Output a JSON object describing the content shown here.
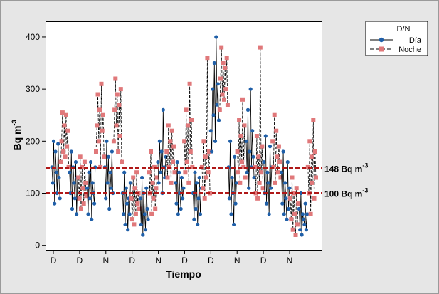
{
  "chart_data": {
    "type": "line",
    "xlabel": "Tiempo",
    "ylabel": "Bq m",
    "ylabel_exp": "-3",
    "ylim": [
      -10,
      430
    ],
    "yticks": [
      0,
      100,
      200,
      300,
      400
    ],
    "xtick_labels": [
      "D",
      "D",
      "N",
      "D",
      "N",
      "D",
      "D",
      "N",
      "D",
      "N"
    ],
    "legend": {
      "title": "D/N",
      "position": "top-right-outside",
      "entries": [
        {
          "label": "Día",
          "color": "#1f5fa8",
          "marker": "circle",
          "line": "solid"
        },
        {
          "label": "Noche",
          "color": "#e0787a",
          "marker": "square",
          "line": "dashed"
        }
      ]
    },
    "reference_lines": [
      {
        "value": 148,
        "label": "148 Bq m",
        "exp": "-3",
        "color": "#b01818"
      },
      {
        "value": 100,
        "label": "100 Bq m",
        "exp": "-3",
        "color": "#b01818"
      }
    ],
    "segments": [
      {
        "series": "Día",
        "values": [
          150,
          120,
          200,
          80,
          180,
          140,
          100,
          195,
          130,
          90
        ]
      },
      {
        "series": "Noche",
        "values": [
          160,
          200,
          255,
          180,
          230,
          170,
          250,
          190,
          220,
          150
        ]
      },
      {
        "series": "Día",
        "values": [
          140,
          100,
          180,
          70,
          150,
          120,
          90,
          160,
          60,
          130
        ]
      },
      {
        "series": "Noche",
        "values": [
          130,
          90,
          170,
          70,
          150,
          110,
          80,
          160,
          120,
          95
        ]
      },
      {
        "series": "Día",
        "values": [
          110,
          60,
          140,
          90,
          160,
          50,
          120,
          100,
          80,
          150
        ]
      },
      {
        "series": "Noche",
        "values": [
          180,
          230,
          290,
          200,
          260,
          150,
          310,
          220,
          250,
          170
        ]
      },
      {
        "series": "Día",
        "values": [
          150,
          90,
          200,
          120,
          170,
          70,
          140,
          110,
          180,
          100
        ]
      },
      {
        "series": "Noche",
        "values": [
          200,
          260,
          320,
          230,
          290,
          180,
          270,
          210,
          300,
          160
        ]
      },
      {
        "series": "Día",
        "values": [
          100,
          60,
          140,
          40,
          110,
          80,
          30,
          90,
          60,
          120
        ]
      },
      {
        "series": "Noche",
        "values": [
          90,
          50,
          130,
          40,
          110,
          60,
          140,
          80,
          100,
          70
        ]
      },
      {
        "series": "Día",
        "values": [
          90,
          40,
          130,
          20,
          100,
          60,
          30,
          110,
          70,
          50
        ]
      },
      {
        "series": "Noche",
        "values": [
          140,
          100,
          180,
          60,
          120,
          90,
          150,
          70,
          110,
          130
        ]
      },
      {
        "series": "Día",
        "values": [
          160,
          120,
          200,
          140,
          180,
          100,
          260,
          150,
          130,
          170
        ]
      },
      {
        "series": "Noche",
        "values": [
          180,
          130,
          230,
          150,
          200,
          120,
          220,
          160,
          190,
          140
        ]
      },
      {
        "series": "Día",
        "values": [
          120,
          80,
          160,
          60,
          140,
          100,
          70,
          130,
          90,
          110
        ]
      },
      {
        "series": "Noche",
        "values": [
          200,
          140,
          260,
          160,
          230,
          120,
          310,
          180,
          240,
          150
        ]
      },
      {
        "series": "Día",
        "values": [
          100,
          50,
          140,
          70,
          120,
          40,
          90,
          130,
          60,
          110
        ]
      },
      {
        "series": "Noche",
        "values": [
          150,
          110,
          200,
          90,
          170,
          130,
          360,
          140,
          180,
          100
        ]
      },
      {
        "series": "Día",
        "values": [
          220,
          180,
          300,
          250,
          350,
          200,
          400,
          270,
          310,
          240
        ]
      },
      {
        "series": "Noche",
        "values": [
          260,
          320,
          380,
          290,
          350,
          280,
          340,
          300,
          360,
          270
        ]
      },
      {
        "series": "Día",
        "values": [
          150,
          90,
          200,
          60,
          130,
          100,
          40,
          170,
          80,
          120
        ]
      },
      {
        "series": "Noche",
        "values": [
          180,
          140,
          240,
          120,
          210,
          160,
          280,
          150,
          230,
          130
        ]
      },
      {
        "series": "Día",
        "values": [
          200,
          140,
          260,
          110,
          180,
          300,
          150,
          220,
          170,
          130
        ]
      },
      {
        "series": "Noche",
        "values": [
          150,
          100,
          210,
          90,
          170,
          120,
          380,
          140,
          190,
          110
        ]
      },
      {
        "series": "Día",
        "values": [
          160,
          100,
          210,
          80,
          140,
          120,
          60,
          190,
          110,
          150
        ]
      },
      {
        "series": "Noche",
        "values": [
          200,
          150,
          250,
          120,
          220,
          170,
          140,
          190,
          160,
          130
        ]
      },
      {
        "series": "Día",
        "values": [
          140,
          80,
          180,
          60,
          120,
          90,
          50,
          160,
          70,
          110
        ]
      },
      {
        "series": "Noche",
        "values": [
          90,
          50,
          130,
          30,
          100,
          60,
          20,
          110,
          40,
          80
        ]
      },
      {
        "series": "Día",
        "values": [
          70,
          30,
          100,
          20,
          60,
          50,
          40,
          80,
          30,
          60
        ]
      },
      {
        "series": "Noche",
        "values": [
          150,
          100,
          200,
          60,
          170,
          120,
          240,
          90,
          180,
          130
        ]
      }
    ]
  }
}
